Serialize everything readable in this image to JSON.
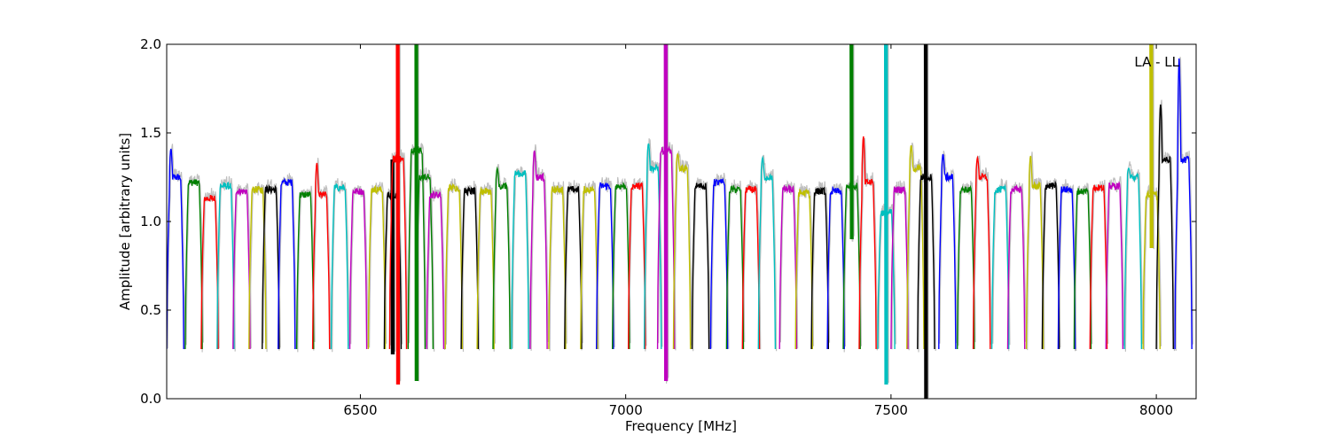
{
  "chart_data": {
    "type": "line",
    "title": "",
    "xlabel": "Frequency [MHz]",
    "ylabel": "Amplitude [arbitrary units]",
    "xlim": [
      6135,
      8075
    ],
    "ylim": [
      0.0,
      2.0
    ],
    "xticks": [
      6500,
      7000,
      7500,
      8000
    ],
    "yticks": [
      0.0,
      0.5,
      1.0,
      1.5,
      2.0
    ],
    "xtick_labels": [
      "6500",
      "7000",
      "7500",
      "8000"
    ],
    "ytick_labels": [
      "0.0",
      "0.5",
      "1.0",
      "1.5",
      "2.0"
    ],
    "grid": false,
    "legend": "none",
    "annotation": "LA - LL",
    "background_series": {
      "name": "",
      "color": "#bfbfbf"
    },
    "window_width_mhz": 32,
    "series_colors": [
      "#0000ff",
      "#008000",
      "#ff0000",
      "#00bfbf",
      "#bf00bf",
      "#bfbf00",
      "#000000"
    ],
    "spectral_windows": [
      {
        "start": 6135,
        "color": "#0000ff",
        "level": 1.25,
        "peak": 1.41
      },
      {
        "start": 6170,
        "color": "#008000",
        "level": 1.22
      },
      {
        "start": 6200,
        "color": "#ff0000",
        "level": 1.13
      },
      {
        "start": 6230,
        "color": "#00bfbf",
        "level": 1.2
      },
      {
        "start": 6260,
        "color": "#bf00bf",
        "level": 1.17
      },
      {
        "start": 6290,
        "color": "#bfbf00",
        "level": 1.18
      },
      {
        "start": 6315,
        "color": "#000000",
        "level": 1.18
      },
      {
        "start": 6345,
        "color": "#0000ff",
        "level": 1.22
      },
      {
        "start": 6380,
        "color": "#008000",
        "level": 1.15
      },
      {
        "start": 6410,
        "color": "#ff0000",
        "level": 1.15,
        "peak": 1.33
      },
      {
        "start": 6445,
        "color": "#00bfbf",
        "level": 1.19
      },
      {
        "start": 6480,
        "color": "#bf00bf",
        "level": 1.17
      },
      {
        "start": 6515,
        "color": "#bfbf00",
        "level": 1.18
      },
      {
        "start": 6545,
        "color": "#000000",
        "level": 1.15,
        "spike_low": 0.25
      },
      {
        "start": 6555,
        "color": "#ff0000",
        "level": 1.35,
        "spike_high": 2.0,
        "spike_low": 0.08
      },
      {
        "start": 6590,
        "color": "#008000",
        "level": 1.4,
        "spike_high": 2.0,
        "spike_low": 0.1
      },
      {
        "start": 6605,
        "color": "#008000",
        "level": 1.25
      },
      {
        "start": 6625,
        "color": "#bf00bf",
        "level": 1.15
      },
      {
        "start": 6660,
        "color": "#bfbf00",
        "level": 1.19
      },
      {
        "start": 6690,
        "color": "#000000",
        "level": 1.17
      },
      {
        "start": 6720,
        "color": "#bfbf00",
        "level": 1.17
      },
      {
        "start": 6750,
        "color": "#008000",
        "level": 1.2,
        "peak": 1.3
      },
      {
        "start": 6785,
        "color": "#00bfbf",
        "level": 1.27
      },
      {
        "start": 6820,
        "color": "#bf00bf",
        "level": 1.25,
        "peak": 1.4
      },
      {
        "start": 6855,
        "color": "#bfbf00",
        "level": 1.18
      },
      {
        "start": 6885,
        "color": "#000000",
        "level": 1.18
      },
      {
        "start": 6915,
        "color": "#bfbf00",
        "level": 1.18
      },
      {
        "start": 6945,
        "color": "#0000ff",
        "level": 1.2
      },
      {
        "start": 6975,
        "color": "#008000",
        "level": 1.2
      },
      {
        "start": 7005,
        "color": "#ff0000",
        "level": 1.2
      },
      {
        "start": 7035,
        "color": "#00bfbf",
        "level": 1.3,
        "peak": 1.44
      },
      {
        "start": 7060,
        "color": "#bf00bf",
        "level": 1.4,
        "spike_high": 2.0,
        "spike_low": 0.1
      },
      {
        "start": 7090,
        "color": "#bfbf00",
        "level": 1.3,
        "peak": 1.38
      },
      {
        "start": 7125,
        "color": "#000000",
        "level": 1.2
      },
      {
        "start": 7160,
        "color": "#0000ff",
        "level": 1.22
      },
      {
        "start": 7190,
        "color": "#008000",
        "level": 1.18
      },
      {
        "start": 7220,
        "color": "#ff0000",
        "level": 1.18
      },
      {
        "start": 7250,
        "color": "#00bfbf",
        "level": 1.25,
        "peak": 1.36
      },
      {
        "start": 7290,
        "color": "#bf00bf",
        "level": 1.18
      },
      {
        "start": 7320,
        "color": "#bfbf00",
        "level": 1.16
      },
      {
        "start": 7350,
        "color": "#000000",
        "level": 1.17
      },
      {
        "start": 7380,
        "color": "#0000ff",
        "level": 1.17
      },
      {
        "start": 7410,
        "color": "#008000",
        "level": 1.2,
        "spike_high": 2.0
      },
      {
        "start": 7440,
        "color": "#ff0000",
        "level": 1.22,
        "peak": 1.48
      },
      {
        "start": 7475,
        "color": "#00bfbf",
        "level": 1.05,
        "spike_high": 2.0,
        "spike_low": 0.08
      },
      {
        "start": 7500,
        "color": "#bf00bf",
        "level": 1.18
      },
      {
        "start": 7530,
        "color": "#bfbf00",
        "level": 1.3,
        "peak": 1.43
      },
      {
        "start": 7550,
        "color": "#000000",
        "level": 1.25,
        "spike_high": 2.0,
        "spike_low": 0.0
      },
      {
        "start": 7590,
        "color": "#0000ff",
        "level": 1.25,
        "peak": 1.38
      },
      {
        "start": 7625,
        "color": "#008000",
        "level": 1.18
      },
      {
        "start": 7655,
        "color": "#ff0000",
        "level": 1.25,
        "peak": 1.36
      },
      {
        "start": 7690,
        "color": "#00bfbf",
        "level": 1.18
      },
      {
        "start": 7720,
        "color": "#bf00bf",
        "level": 1.18
      },
      {
        "start": 7755,
        "color": "#bfbf00",
        "level": 1.2,
        "peak": 1.37
      },
      {
        "start": 7785,
        "color": "#000000",
        "level": 1.2
      },
      {
        "start": 7815,
        "color": "#0000ff",
        "level": 1.18
      },
      {
        "start": 7845,
        "color": "#008000",
        "level": 1.17
      },
      {
        "start": 7875,
        "color": "#ff0000",
        "level": 1.19
      },
      {
        "start": 7905,
        "color": "#bf00bf",
        "level": 1.2
      },
      {
        "start": 7940,
        "color": "#00bfbf",
        "level": 1.25,
        "peak": 1.3
      },
      {
        "start": 7975,
        "color": "#bfbf00",
        "level": 1.15,
        "spike_high": 2.0
      },
      {
        "start": 8000,
        "color": "#000000",
        "level": 1.35,
        "peak": 1.66
      },
      {
        "start": 8035,
        "color": "#0000ff",
        "level": 1.35,
        "peak": 1.92
      }
    ]
  }
}
